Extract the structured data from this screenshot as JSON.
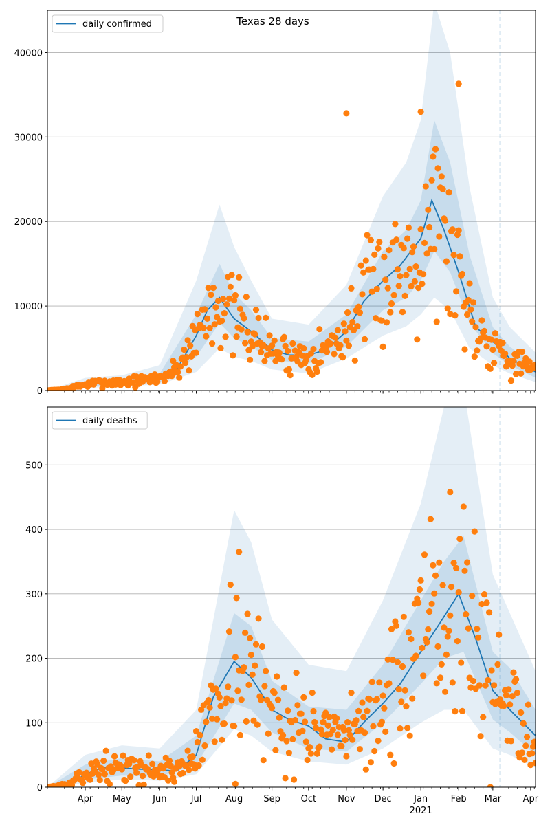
{
  "figure": {
    "title": "Texas 28 days",
    "dashed_line_date": "2021-03-07",
    "colors": {
      "line": "#1f77b4",
      "band": "#1f77b4",
      "dots": "#ff7f0e",
      "grid": "#b0b0b0",
      "dashed": "#1f77b4"
    }
  },
  "chart_data": [
    {
      "type": "line",
      "title": "Texas 28 days",
      "xlabel": "",
      "ylabel": "",
      "legend": "upper left",
      "grid": "horizontal",
      "x_range": [
        "2020-03-01",
        "2021-04-05"
      ],
      "ylim": [
        0,
        45000
      ],
      "y_ticks": [
        0,
        10000,
        20000,
        30000,
        40000
      ],
      "x_ticks": [
        {
          "date": "2020-04-01",
          "label": "Apr"
        },
        {
          "date": "2020-05-01",
          "label": "May"
        },
        {
          "date": "2020-06-01",
          "label": "Jun"
        },
        {
          "date": "2020-07-01",
          "label": "Jul"
        },
        {
          "date": "2020-08-01",
          "label": "Aug"
        },
        {
          "date": "2020-09-01",
          "label": "Sep"
        },
        {
          "date": "2020-10-01",
          "label": "Oct"
        },
        {
          "date": "2020-11-01",
          "label": "Nov"
        },
        {
          "date": "2020-12-01",
          "label": "Dec"
        },
        {
          "date": "2021-01-01",
          "label": "Jan",
          "sublabel": "2021"
        },
        {
          "date": "2021-02-01",
          "label": "Feb"
        },
        {
          "date": "2021-03-01",
          "label": "Mar"
        },
        {
          "date": "2021-04-01",
          "label": "Apr"
        }
      ],
      "series": [
        {
          "name": "daily confirmed",
          "x": [
            "2020-03-01",
            "2020-03-15",
            "2020-04-01",
            "2020-04-15",
            "2020-05-01",
            "2020-05-15",
            "2020-06-01",
            "2020-06-15",
            "2020-07-01",
            "2020-07-10",
            "2020-07-20",
            "2020-08-01",
            "2020-08-15",
            "2020-09-01",
            "2020-09-15",
            "2020-10-01",
            "2020-10-15",
            "2020-11-01",
            "2020-11-15",
            "2020-12-01",
            "2020-12-15",
            "2021-01-01",
            "2021-01-10",
            "2021-01-20",
            "2021-02-01",
            "2021-02-15",
            "2021-03-01",
            "2021-03-15",
            "2021-04-05"
          ],
          "values": [
            0,
            150,
            700,
            950,
            1000,
            1150,
            1500,
            2500,
            6500,
            9500,
            11000,
            8500,
            7000,
            4800,
            4200,
            4200,
            4800,
            7000,
            10500,
            13000,
            14800,
            18000,
            22500,
            19000,
            14000,
            7500,
            5800,
            3800,
            2200
          ]
        }
      ],
      "bands": {
        "x": [
          "2020-03-01",
          "2020-04-01",
          "2020-05-01",
          "2020-06-01",
          "2020-07-01",
          "2020-07-20",
          "2020-08-01",
          "2020-08-15",
          "2020-09-01",
          "2020-10-01",
          "2020-11-01",
          "2020-12-01",
          "2020-12-20",
          "2021-01-01",
          "2021-01-12",
          "2021-01-25",
          "2021-02-10",
          "2021-03-01",
          "2021-03-15",
          "2021-04-05"
        ],
        "inner_low": [
          0,
          500,
          700,
          1000,
          4000,
          8000,
          6200,
          5200,
          3600,
          3200,
          5200,
          9500,
          11000,
          13000,
          16500,
          14000,
          8000,
          4400,
          3000,
          1500
        ],
        "inner_high": [
          0,
          1000,
          1300,
          2000,
          9000,
          15000,
          11500,
          9500,
          6200,
          5800,
          9000,
          16500,
          19000,
          22500,
          32000,
          27000,
          16000,
          7500,
          5200,
          3000
        ],
        "outer_low": [
          0,
          300,
          500,
          700,
          2200,
          5000,
          4000,
          3500,
          2500,
          2000,
          3800,
          6500,
          7600,
          9000,
          11000,
          9500,
          5000,
          3000,
          2000,
          1000
        ],
        "outer_high": [
          0,
          1500,
          1800,
          3000,
          13000,
          22000,
          17000,
          13000,
          8500,
          7800,
          12500,
          23000,
          27000,
          32000,
          46000,
          40000,
          24000,
          11000,
          7500,
          4500
        ]
      },
      "scatter_note": "orange daily observations",
      "scatter_seed": 7,
      "scatter_spread": 0.28,
      "scatter_outliers": [
        {
          "x": "2020-11-01",
          "y": 32800
        },
        {
          "x": "2021-01-01",
          "y": 33000
        },
        {
          "x": "2021-02-01",
          "y": 36300
        }
      ]
    },
    {
      "type": "line",
      "title": "",
      "xlabel": "",
      "ylabel": "",
      "legend": "upper left",
      "grid": "horizontal",
      "x_range": [
        "2020-03-01",
        "2021-04-05"
      ],
      "ylim": [
        0,
        590
      ],
      "y_ticks": [
        0,
        100,
        200,
        300,
        400,
        500
      ],
      "x_ticks": [
        {
          "date": "2020-04-01",
          "label": "Apr"
        },
        {
          "date": "2020-05-01",
          "label": "May"
        },
        {
          "date": "2020-06-01",
          "label": "Jun"
        },
        {
          "date": "2020-07-01",
          "label": "Jul"
        },
        {
          "date": "2020-08-01",
          "label": "Aug"
        },
        {
          "date": "2020-09-01",
          "label": "Sep"
        },
        {
          "date": "2020-10-01",
          "label": "Oct"
        },
        {
          "date": "2020-11-01",
          "label": "Nov"
        },
        {
          "date": "2020-12-01",
          "label": "Dec"
        },
        {
          "date": "2021-01-01",
          "label": "Jan",
          "sublabel": "2021"
        },
        {
          "date": "2021-02-01",
          "label": "Feb"
        },
        {
          "date": "2021-03-01",
          "label": "Mar"
        },
        {
          "date": "2021-04-01",
          "label": "Apr"
        }
      ],
      "series": [
        {
          "name": "daily deaths",
          "x": [
            "2020-03-01",
            "2020-03-20",
            "2020-04-01",
            "2020-04-15",
            "2020-05-01",
            "2020-05-15",
            "2020-06-01",
            "2020-06-15",
            "2020-07-01",
            "2020-07-15",
            "2020-08-01",
            "2020-08-15",
            "2020-09-01",
            "2020-09-15",
            "2020-10-01",
            "2020-10-15",
            "2020-11-01",
            "2020-11-15",
            "2020-12-01",
            "2020-12-15",
            "2021-01-01",
            "2021-01-15",
            "2021-02-01",
            "2021-02-15",
            "2021-03-01",
            "2021-03-15",
            "2021-04-05"
          ],
          "values": [
            0,
            5,
            20,
            30,
            30,
            28,
            27,
            25,
            50,
            140,
            195,
            170,
            120,
            105,
            95,
            75,
            70,
            100,
            130,
            160,
            210,
            250,
            300,
            230,
            150,
            120,
            80
          ]
        }
      ],
      "bands": {
        "x": [
          "2020-03-01",
          "2020-04-01",
          "2020-05-01",
          "2020-06-01",
          "2020-07-01",
          "2020-08-01",
          "2020-08-15",
          "2020-09-01",
          "2020-10-01",
          "2020-11-01",
          "2020-12-01",
          "2021-01-01",
          "2021-01-20",
          "2021-02-05",
          "2021-03-01",
          "2021-03-15",
          "2021-04-05"
        ],
        "inner_low": [
          0,
          12,
          18,
          16,
          35,
          130,
          120,
          85,
          60,
          55,
          100,
          160,
          200,
          210,
          105,
          85,
          50
        ],
        "inner_high": [
          0,
          35,
          45,
          40,
          80,
          270,
          250,
          165,
          125,
          120,
          190,
          290,
          350,
          390,
          210,
          185,
          120
        ],
        "outer_low": [
          0,
          6,
          12,
          10,
          20,
          90,
          80,
          55,
          40,
          35,
          60,
          100,
          120,
          120,
          60,
          50,
          30
        ],
        "outer_high": [
          0,
          50,
          65,
          60,
          120,
          430,
          380,
          260,
          190,
          180,
          290,
          440,
          590,
          620,
          330,
          270,
          180
        ]
      },
      "scatter_note": "orange daily observations",
      "scatter_seed": 13,
      "scatter_spread": 0.35,
      "scatter_outliers": [
        {
          "x": "2020-08-05",
          "y": 365
        },
        {
          "x": "2020-08-02",
          "y": 5
        },
        {
          "x": "2021-01-25",
          "y": 458
        }
      ]
    }
  ]
}
